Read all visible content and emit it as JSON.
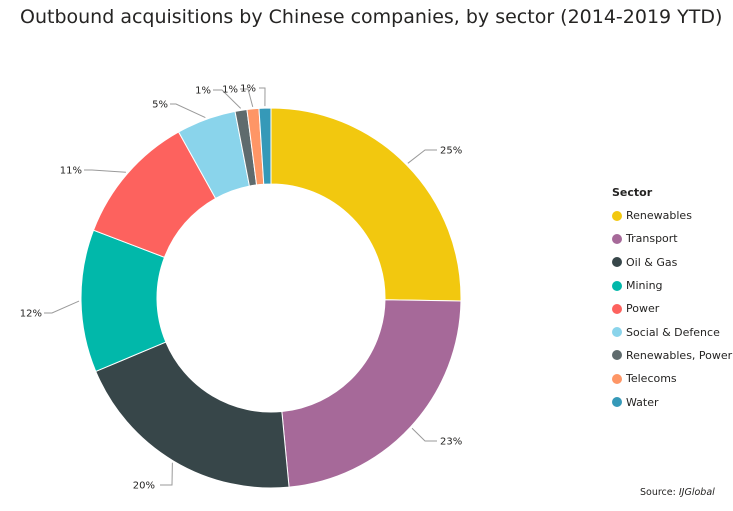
{
  "title": "Outbound acquisitions by Chinese companies, by sector (2014-2019 YTD)",
  "legend": {
    "title": "Sector"
  },
  "source": {
    "label": "Source:",
    "name": "IJGlobal"
  },
  "chart_data": {
    "type": "pie",
    "title": "Outbound acquisitions by Chinese companies, by sector (2014-2019 YTD)",
    "legend_title": "Sector",
    "legend_position": "right",
    "donut": true,
    "categories": [
      "Renewables",
      "Transport",
      "Oil & Gas",
      "Mining",
      "Power",
      "Social & Defence",
      "Renewables, Power",
      "Telecoms",
      "Water"
    ],
    "values": [
      25,
      23,
      20,
      12,
      11,
      5,
      1,
      1,
      1
    ],
    "labels": [
      "25%",
      "23%",
      "20%",
      "12%",
      "11%",
      "5%",
      "1%",
      "1%",
      "1%"
    ],
    "colors": [
      "#F2C80F",
      "#A66999",
      "#374649",
      "#01B8AA",
      "#FD625E",
      "#8AD4EB",
      "#5F6B6D",
      "#FE9666",
      "#3599B8"
    ]
  }
}
